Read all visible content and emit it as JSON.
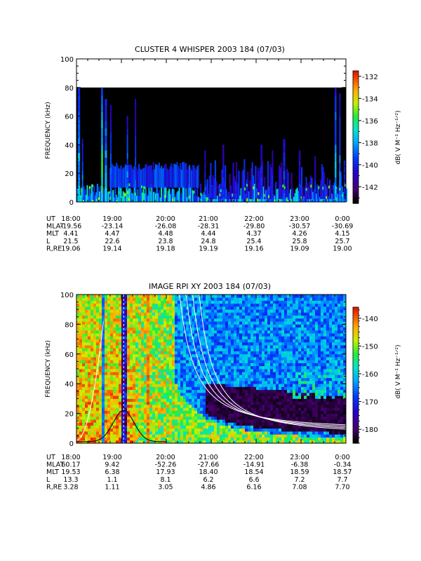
{
  "chart_data": [
    {
      "type": "heatmap",
      "title": "CLUSTER 4 WHISPER 2003 184 (07/03)",
      "ylabel": "FREQUENCY (kHz)",
      "ylim": [
        0,
        100
      ],
      "yticks": [
        "0",
        "20",
        "40",
        "60",
        "80",
        "100"
      ],
      "ytick_values": [
        0,
        20,
        40,
        60,
        80,
        100
      ],
      "data_freq_max": 80,
      "xlim_hours": [
        18,
        24
      ],
      "colorbar": {
        "label": "dB( V M⁻¹ Hz⁻¹ᐟ²)",
        "range": [
          -143.5,
          -131.5
        ],
        "ticks": [
          "-132",
          "-134",
          "-136",
          "-138",
          "-140",
          "-142"
        ],
        "tick_values": [
          -132,
          -134,
          -136,
          -138,
          -140,
          -142
        ]
      },
      "ephemeris": {
        "rows": [
          {
            "label": "UT",
            "values": [
              "18:00",
              "19:00",
              "20:00",
              "21:00",
              "22:00",
              "23:00",
              "0:00"
            ]
          },
          {
            "label": "MLAT",
            "values": [
              "-19.56",
              "-23.14",
              "-26.08",
              "-28.31",
              "-29.80",
              "-30.57",
              "-30.69"
            ]
          },
          {
            "label": "MLT",
            "values": [
              "4.41",
              "4.47",
              "4.48",
              "4.44",
              "4.37",
              "4.26",
              "4.15"
            ]
          },
          {
            "label": "L",
            "values": [
              "21.5",
              "22.6",
              "23.8",
              "24.8",
              "25.4",
              "25.8",
              "25.7"
            ]
          },
          {
            "label": "R,RE",
            "values": [
              "19.06",
              "19.14",
              "19.18",
              "19.19",
              "19.16",
              "19.09",
              "19.00"
            ]
          }
        ]
      }
    },
    {
      "type": "heatmap",
      "title": "IMAGE RPI XY 2003 184 (07/03)",
      "ylabel": "FREQUENCY (kHz)",
      "ylim": [
        0,
        100
      ],
      "yticks": [
        "0",
        "20",
        "40",
        "60",
        "80",
        "100"
      ],
      "ytick_values": [
        0,
        20,
        40,
        60,
        80,
        100
      ],
      "xlim_hours": [
        18,
        24
      ],
      "colorbar": {
        "label": "dB( V M⁻¹ Hz⁻¹ᐟ²)",
        "range": [
          -185,
          -136
        ],
        "ticks": [
          "-140",
          "-150",
          "-160",
          "-170",
          "-180"
        ],
        "tick_values": [
          -140,
          -150,
          -160,
          -170,
          -180
        ]
      },
      "ephemeris": {
        "rows": [
          {
            "label": "UT",
            "values": [
              "18:00",
              "19:00",
              "20:00",
              "21:00",
              "22:00",
              "23:00",
              "0:00"
            ]
          },
          {
            "label": "MLAT",
            "values": [
              "60.17",
              "9.42",
              "-52.26",
              "-27.66",
              "-14.91",
              "-6.38",
              "-0.34"
            ]
          },
          {
            "label": "MLT",
            "values": [
              "19.53",
              "6.38",
              "17.93",
              "18.40",
              "18.54",
              "18.59",
              "18.57"
            ]
          },
          {
            "label": "L",
            "values": [
              "13.3",
              "1.1",
              "8.1",
              "6.2",
              "6.6",
              "7.2",
              "7.7"
            ]
          },
          {
            "label": "R,RE",
            "values": [
              "3.28",
              "1.11",
              "3.05",
              "4.86",
              "6.16",
              "7.08",
              "7.70"
            ]
          }
        ]
      },
      "overlay": {
        "black_curve_peak": {
          "x_hours": 19.05,
          "y_khz": 22
        },
        "white_curve_count": 5
      }
    }
  ]
}
